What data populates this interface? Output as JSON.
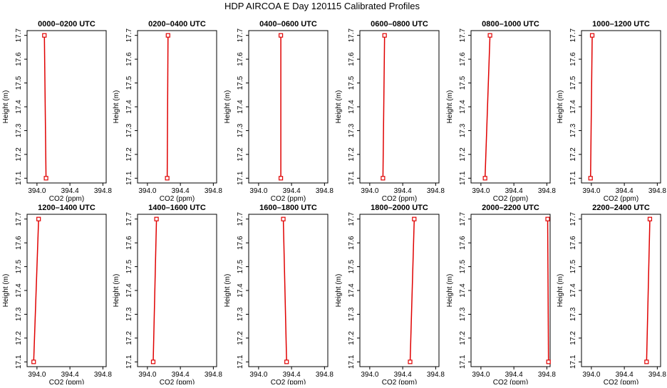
{
  "figure_title": "HDP AIRCOA E  Day 120115  Calibrated Profiles",
  "colors": {
    "line": "#e00000",
    "frame": "#000000",
    "background": "#ffffff"
  },
  "chart_data": [
    {
      "type": "line",
      "title": "0000–0200 UTC",
      "xlabel": "CO2 (ppm)",
      "ylabel": "Height (m)",
      "xlim": [
        393.88,
        394.84
      ],
      "ylim": [
        17.08,
        17.72
      ],
      "xticks": [
        "394.0",
        "394.4",
        "394.8"
      ],
      "yticks": [
        "17.1",
        "17.2",
        "17.3",
        "17.4",
        "17.5",
        "17.6",
        "17.7"
      ],
      "x": [
        394.11,
        394.09
      ],
      "y": [
        17.1,
        17.7
      ]
    },
    {
      "type": "line",
      "title": "0200–0400 UTC",
      "xlabel": "CO2 (ppm)",
      "ylabel": "Height (m)",
      "xlim": [
        393.88,
        394.84
      ],
      "ylim": [
        17.08,
        17.72
      ],
      "xticks": [
        "394.0",
        "394.4",
        "394.8"
      ],
      "yticks": [
        "17.1",
        "17.2",
        "17.3",
        "17.4",
        "17.5",
        "17.6",
        "17.7"
      ],
      "x": [
        394.24,
        394.25
      ],
      "y": [
        17.1,
        17.7
      ]
    },
    {
      "type": "line",
      "title": "0400–0600 UTC",
      "xlabel": "CO2 (ppm)",
      "ylabel": "Height (m)",
      "xlim": [
        393.88,
        394.84
      ],
      "ylim": [
        17.08,
        17.72
      ],
      "xticks": [
        "394.0",
        "394.4",
        "394.8"
      ],
      "yticks": [
        "17.1",
        "17.2",
        "17.3",
        "17.4",
        "17.5",
        "17.6",
        "17.7"
      ],
      "x": [
        394.27,
        394.27
      ],
      "y": [
        17.1,
        17.7
      ]
    },
    {
      "type": "line",
      "title": "0600–0800 UTC",
      "xlabel": "CO2 (ppm)",
      "ylabel": "Height (m)",
      "xlim": [
        393.88,
        394.84
      ],
      "ylim": [
        17.08,
        17.72
      ],
      "xticks": [
        "394.0",
        "394.4",
        "394.8"
      ],
      "yticks": [
        "17.1",
        "17.2",
        "17.3",
        "17.4",
        "17.5",
        "17.6",
        "17.7"
      ],
      "x": [
        394.16,
        394.18
      ],
      "y": [
        17.1,
        17.7
      ]
    },
    {
      "type": "line",
      "title": "0800–1000 UTC",
      "xlabel": "CO2 (ppm)",
      "ylabel": "Height (m)",
      "xlim": [
        393.88,
        394.84
      ],
      "ylim": [
        17.08,
        17.72
      ],
      "xticks": [
        "394.0",
        "394.4",
        "394.8"
      ],
      "yticks": [
        "17.1",
        "17.2",
        "17.3",
        "17.4",
        "17.5",
        "17.6",
        "17.7"
      ],
      "x": [
        394.05,
        394.11
      ],
      "y": [
        17.1,
        17.7
      ]
    },
    {
      "type": "line",
      "title": "1000–1200 UTC",
      "xlabel": "CO2 (ppm)",
      "ylabel": "Height (m)",
      "xlim": [
        393.88,
        394.84
      ],
      "ylim": [
        17.08,
        17.72
      ],
      "xticks": [
        "394.0",
        "394.4",
        "394.8"
      ],
      "yticks": [
        "17.1",
        "17.2",
        "17.3",
        "17.4",
        "17.5",
        "17.6",
        "17.7"
      ],
      "x": [
        393.99,
        394.01
      ],
      "y": [
        17.1,
        17.7
      ]
    },
    {
      "type": "line",
      "title": "1200–1400 UTC",
      "xlabel": "CO2 (ppm)",
      "ylabel": "Height (m)",
      "xlim": [
        393.88,
        394.84
      ],
      "ylim": [
        17.08,
        17.72
      ],
      "xticks": [
        "394.0",
        "394.4",
        "394.8"
      ],
      "yticks": [
        "17.1",
        "17.2",
        "17.3",
        "17.4",
        "17.5",
        "17.6",
        "17.7"
      ],
      "x": [
        393.96,
        394.02
      ],
      "y": [
        17.1,
        17.7
      ]
    },
    {
      "type": "line",
      "title": "1400–1600 UTC",
      "xlabel": "CO2 (ppm)",
      "ylabel": "Height (m)",
      "xlim": [
        393.88,
        394.84
      ],
      "ylim": [
        17.08,
        17.72
      ],
      "xticks": [
        "394.0",
        "394.4",
        "394.8"
      ],
      "yticks": [
        "17.1",
        "17.2",
        "17.3",
        "17.4",
        "17.5",
        "17.6",
        "17.7"
      ],
      "x": [
        394.07,
        394.11
      ],
      "y": [
        17.1,
        17.7
      ]
    },
    {
      "type": "line",
      "title": "1600–1800 UTC",
      "xlabel": "CO2 (ppm)",
      "ylabel": "Height (m)",
      "xlim": [
        393.88,
        394.84
      ],
      "ylim": [
        17.08,
        17.72
      ],
      "xticks": [
        "394.0",
        "394.4",
        "394.8"
      ],
      "yticks": [
        "17.1",
        "17.2",
        "17.3",
        "17.4",
        "17.5",
        "17.6",
        "17.7"
      ],
      "x": [
        394.34,
        394.3
      ],
      "y": [
        17.1,
        17.7
      ]
    },
    {
      "type": "line",
      "title": "1800–2000 UTC",
      "xlabel": "CO2 (ppm)",
      "ylabel": "Height (m)",
      "xlim": [
        393.88,
        394.84
      ],
      "ylim": [
        17.08,
        17.72
      ],
      "xticks": [
        "394.0",
        "394.4",
        "394.8"
      ],
      "yticks": [
        "17.1",
        "17.2",
        "17.3",
        "17.4",
        "17.5",
        "17.6",
        "17.7"
      ],
      "x": [
        394.49,
        394.54
      ],
      "y": [
        17.1,
        17.7
      ]
    },
    {
      "type": "line",
      "title": "2000–2200 UTC",
      "xlabel": "CO2 (ppm)",
      "ylabel": "Height (m)",
      "xlim": [
        393.88,
        394.84
      ],
      "ylim": [
        17.08,
        17.72
      ],
      "xticks": [
        "394.0",
        "394.4",
        "394.8"
      ],
      "yticks": [
        "17.1",
        "17.2",
        "17.3",
        "17.4",
        "17.5",
        "17.6",
        "17.7"
      ],
      "x": [
        394.82,
        394.81
      ],
      "y": [
        17.1,
        17.7
      ]
    },
    {
      "type": "line",
      "title": "2200–2400 UTC",
      "xlabel": "CO2 (ppm)",
      "ylabel": "Height (m)",
      "xlim": [
        393.88,
        394.84
      ],
      "ylim": [
        17.08,
        17.72
      ],
      "xticks": [
        "394.0",
        "394.4",
        "394.8"
      ],
      "yticks": [
        "17.1",
        "17.2",
        "17.3",
        "17.4",
        "17.5",
        "17.6",
        "17.7"
      ],
      "x": [
        394.67,
        394.71
      ],
      "y": [
        17.1,
        17.7
      ]
    }
  ]
}
